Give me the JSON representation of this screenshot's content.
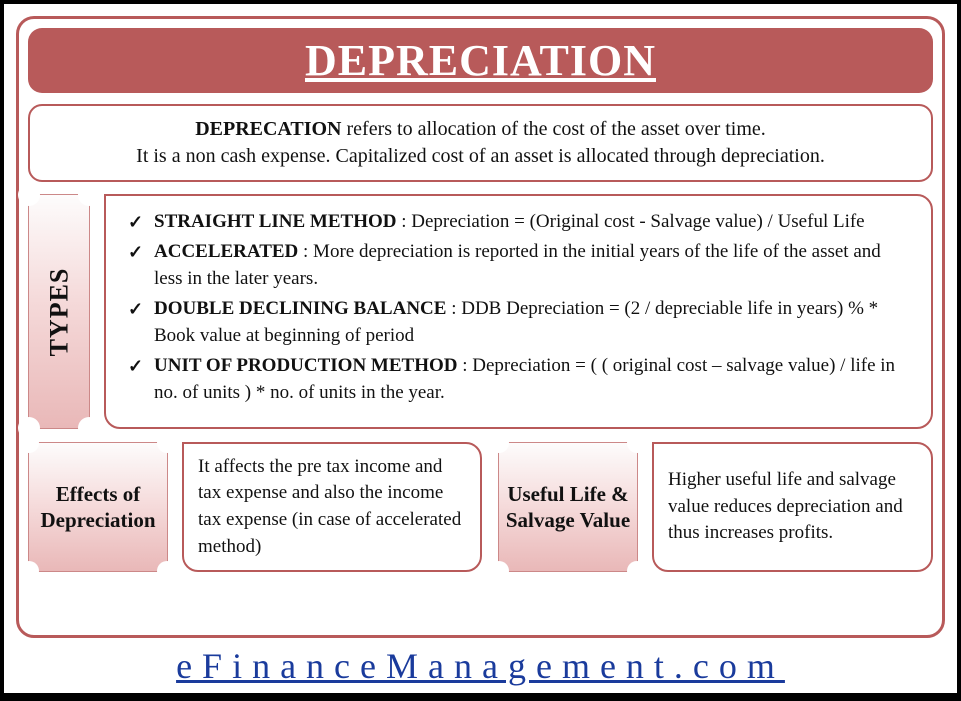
{
  "colors": {
    "frame_border": "#b85a5a",
    "title_bg": "#b85a5a",
    "title_text": "#ffffff",
    "ticket_grad_top": "#fdfcfc",
    "ticket_grad_mid": "#f5dada",
    "ticket_grad_bot": "#e9b8b8",
    "body_text": "#111111",
    "link_text": "#1a3b9c",
    "page_bg": "#ffffff",
    "outer_bg": "#000000"
  },
  "title": "DEPRECIATION",
  "definition": {
    "line1_bold": "DEPRECATION",
    "line1_rest": " refers to allocation of the cost of the asset over time.",
    "line2": "It is a non cash expense. Capitalized cost of an asset is allocated through depreciation."
  },
  "types_label": "TYPES",
  "types": [
    {
      "name": "STRAIGHT LINE METHOD",
      "desc": " : Depreciation = (Original cost - Salvage value) / Useful Life"
    },
    {
      "name": "ACCELERATED",
      "desc": " : More depreciation is reported in the initial years of the life of the asset and less in the later years."
    },
    {
      "name": "DOUBLE DECLINING BALANCE",
      "desc": " : DDB Depreciation = (2 / depreciable life in years) % * Book value at beginning of period"
    },
    {
      "name": "UNIT OF PRODUCTION METHOD",
      "desc": " : Depreciation = ( ( original cost – salvage value) / life in no. of units ) * no. of units in the year."
    }
  ],
  "effects": {
    "label": "Effects of Depreciation",
    "text": "It affects the pre tax income and tax expense and also the income tax expense (in case of accelerated method)"
  },
  "useful": {
    "label": "Useful Life & Salvage Value",
    "text": "Higher useful life and salvage value reduces depreciation and thus increases profits."
  },
  "footer": "eFinanceManagement.com"
}
